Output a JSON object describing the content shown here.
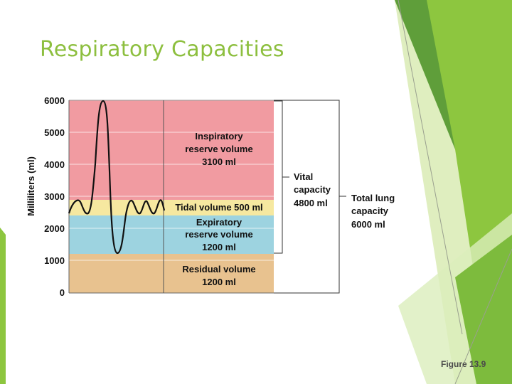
{
  "slide": {
    "title": "Respiratory Capacities",
    "caption": "Figure 13.9"
  },
  "colors": {
    "title": "#8dbf3f",
    "inspiratory_reserve": "#f19ba1",
    "tidal": "#f6e8a0",
    "expiratory_reserve": "#9dd3e0",
    "residual": "#e8c28f",
    "accent_green": "#8dc63f"
  },
  "diagram": {
    "y_axis_label": "Milliliters (ml)",
    "y_ticks": [
      "6000",
      "5000",
      "4000",
      "3000",
      "2000",
      "1000",
      "0"
    ],
    "y_range": [
      0,
      6000
    ],
    "volumes": {
      "inspiratory_reserve": {
        "name_line1": "Inspiratory",
        "name_line2": "reserve volume",
        "amount": "3100 ml",
        "range_ml": [
          2900,
          6000
        ]
      },
      "tidal": {
        "label": "Tidal volume 500 ml",
        "range_ml": [
          2400,
          2900
        ]
      },
      "expiratory_reserve": {
        "name_line1": "Expiratory",
        "name_line2": "reserve volume",
        "amount": "1200 ml",
        "range_ml": [
          1200,
          2400
        ]
      },
      "residual": {
        "name": "Residual volume",
        "amount": "1200 ml",
        "range_ml": [
          0,
          1200
        ]
      }
    },
    "capacities": {
      "vital": {
        "line1": "Vital",
        "line2": "capacity",
        "line3": "4800 ml",
        "range_ml": [
          1200,
          6000
        ]
      },
      "total": {
        "line1": "Total lung",
        "line2": "capacity",
        "line3": "6000 ml",
        "range_ml": [
          0,
          6000
        ]
      }
    }
  }
}
